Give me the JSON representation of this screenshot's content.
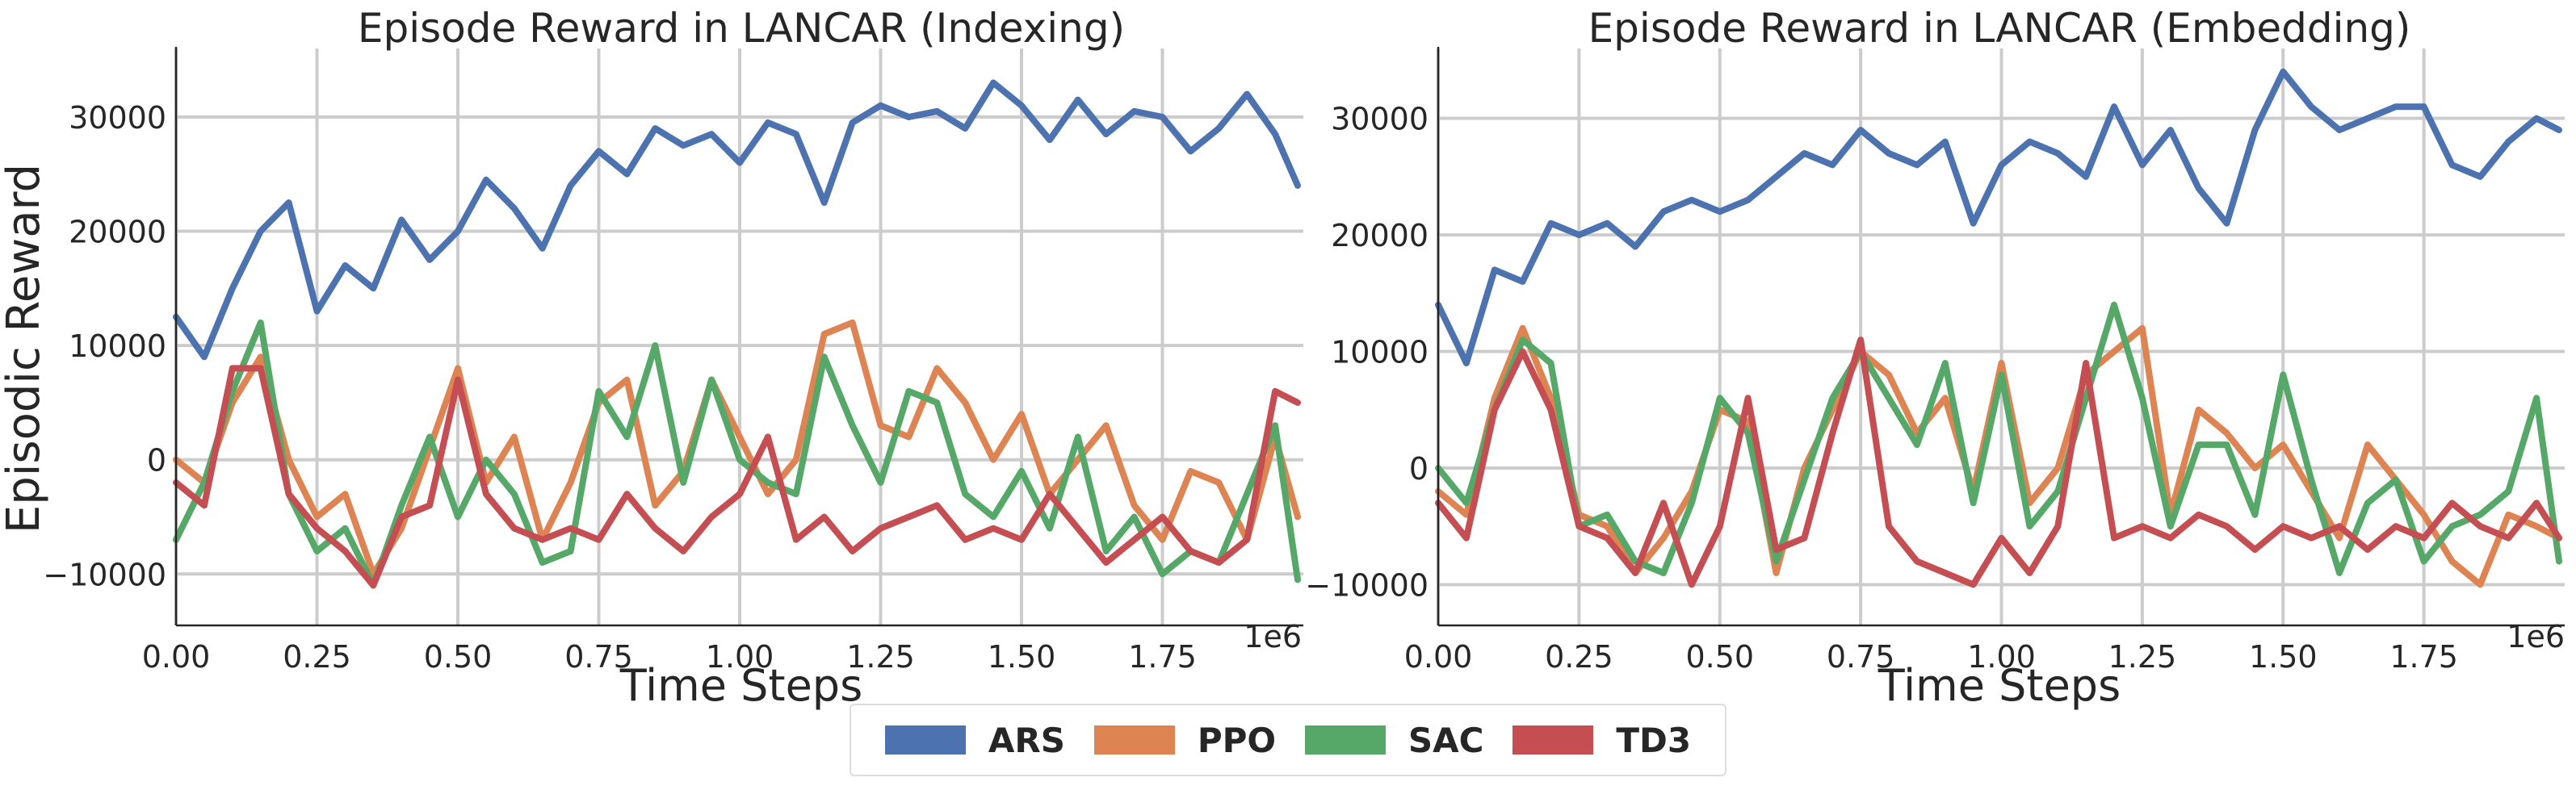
{
  "y_axis_label": "Episodic Reward",
  "colors": {
    "ARS": "#4c72b0",
    "PPO": "#dd8452",
    "SAC": "#55a868",
    "TD3": "#c44e52"
  },
  "legend": [
    {
      "name": "ARS",
      "color": "#4c72b0"
    },
    {
      "name": "PPO",
      "color": "#dd8452"
    },
    {
      "name": "SAC",
      "color": "#55a868"
    },
    {
      "name": "TD3",
      "color": "#c44e52"
    }
  ],
  "chart_data": [
    {
      "type": "line",
      "title": "Episode Reward in LANCAR (Indexing)",
      "xlabel": "Time Steps",
      "ylabel": "Episodic Reward",
      "x_offset_label": "1e6",
      "xlim": [
        0,
        2000000
      ],
      "ylim": [
        -14500,
        36000
      ],
      "xticks": [
        0,
        250000,
        500000,
        750000,
        1000000,
        1250000,
        1500000,
        1750000
      ],
      "xtick_labels": [
        "0.00",
        "0.25",
        "0.50",
        "0.75",
        "1.00",
        "1.25",
        "1.50",
        "1.75"
      ],
      "yticks": [
        -10000,
        0,
        10000,
        20000,
        30000
      ],
      "ytick_labels": [
        "−10000",
        "0",
        "10000",
        "20000",
        "30000"
      ],
      "grid": true,
      "series": [
        {
          "name": "ARS",
          "color": "#4c72b0",
          "x": [
            0,
            50000,
            100000,
            150000,
            200000,
            250000,
            300000,
            350000,
            400000,
            450000,
            500000,
            550000,
            600000,
            650000,
            700000,
            750000,
            800000,
            850000,
            900000,
            950000,
            1000000,
            1050000,
            1100000,
            1150000,
            1200000,
            1250000,
            1300000,
            1350000,
            1400000,
            1450000,
            1500000,
            1550000,
            1600000,
            1650000,
            1700000,
            1750000,
            1800000,
            1850000,
            1900000,
            1950000,
            1990000
          ],
          "y": [
            12500,
            9000,
            15000,
            20000,
            22500,
            13000,
            17000,
            15000,
            21000,
            17500,
            20000,
            24500,
            22000,
            18500,
            24000,
            27000,
            25000,
            29000,
            27500,
            28500,
            26000,
            29500,
            28500,
            22500,
            29500,
            31000,
            30000,
            30500,
            29000,
            33000,
            31000,
            28000,
            31500,
            28500,
            30500,
            30000,
            27000,
            29000,
            32000,
            28500,
            24000
          ]
        },
        {
          "name": "PPO",
          "color": "#dd8452",
          "x": [
            0,
            50000,
            100000,
            150000,
            200000,
            250000,
            300000,
            350000,
            400000,
            450000,
            500000,
            550000,
            600000,
            650000,
            700000,
            750000,
            800000,
            850000,
            900000,
            950000,
            1000000,
            1050000,
            1100000,
            1150000,
            1200000,
            1250000,
            1300000,
            1350000,
            1400000,
            1450000,
            1500000,
            1550000,
            1600000,
            1650000,
            1700000,
            1750000,
            1800000,
            1850000,
            1900000,
            1950000,
            1990000
          ],
          "y": [
            0,
            -2000,
            5000,
            9000,
            0,
            -5000,
            -3000,
            -10000,
            -6000,
            1000,
            8000,
            -2000,
            2000,
            -7000,
            -2000,
            5000,
            7000,
            -4000,
            -1000,
            7000,
            2000,
            -3000,
            0,
            11000,
            12000,
            3000,
            2000,
            8000,
            5000,
            0,
            4000,
            -3000,
            0,
            3000,
            -4000,
            -7000,
            -1000,
            -2000,
            -7000,
            2000,
            -5000
          ]
        },
        {
          "name": "SAC",
          "color": "#55a868",
          "x": [
            0,
            50000,
            100000,
            150000,
            200000,
            250000,
            300000,
            350000,
            400000,
            450000,
            500000,
            550000,
            600000,
            650000,
            700000,
            750000,
            800000,
            850000,
            900000,
            950000,
            1000000,
            1050000,
            1100000,
            1150000,
            1200000,
            1250000,
            1300000,
            1350000,
            1400000,
            1450000,
            1500000,
            1550000,
            1600000,
            1650000,
            1700000,
            1750000,
            1800000,
            1850000,
            1900000,
            1950000,
            1990000
          ],
          "y": [
            -7000,
            -2000,
            6000,
            12000,
            -3000,
            -8000,
            -6000,
            -11000,
            -4000,
            2000,
            -5000,
            0,
            -3000,
            -9000,
            -8000,
            6000,
            2000,
            10000,
            -2000,
            7000,
            0,
            -2000,
            -3000,
            9000,
            3000,
            -2000,
            6000,
            5000,
            -3000,
            -5000,
            -1000,
            -6000,
            2000,
            -8000,
            -5000,
            -10000,
            -8000,
            -9000,
            -3000,
            3000,
            -10500
          ]
        },
        {
          "name": "TD3",
          "color": "#c44e52",
          "x": [
            0,
            50000,
            100000,
            150000,
            200000,
            250000,
            300000,
            350000,
            400000,
            450000,
            500000,
            550000,
            600000,
            650000,
            700000,
            750000,
            800000,
            850000,
            900000,
            950000,
            1000000,
            1050000,
            1100000,
            1150000,
            1200000,
            1250000,
            1300000,
            1350000,
            1400000,
            1450000,
            1500000,
            1550000,
            1600000,
            1650000,
            1700000,
            1750000,
            1800000,
            1850000,
            1900000,
            1950000,
            1990000
          ],
          "y": [
            -2000,
            -4000,
            8000,
            8000,
            -3000,
            -6000,
            -8000,
            -11000,
            -5000,
            -4000,
            7000,
            -3000,
            -6000,
            -7000,
            -6000,
            -7000,
            -3000,
            -6000,
            -8000,
            -5000,
            -3000,
            2000,
            -7000,
            -5000,
            -8000,
            -6000,
            -5000,
            -4000,
            -7000,
            -6000,
            -7000,
            -3000,
            -6000,
            -9000,
            -7000,
            -5000,
            -8000,
            -9000,
            -7000,
            6000,
            5000
          ]
        }
      ]
    },
    {
      "type": "line",
      "title": "Episode Reward in LANCAR (Embedding)",
      "xlabel": "Time Steps",
      "ylabel": "",
      "x_offset_label": "1e6",
      "xlim": [
        0,
        2000000
      ],
      "ylim": [
        -13500,
        36000
      ],
      "xticks": [
        0,
        250000,
        500000,
        750000,
        1000000,
        1250000,
        1500000,
        1750000
      ],
      "xtick_labels": [
        "0.00",
        "0.25",
        "0.50",
        "0.75",
        "1.00",
        "1.25",
        "1.50",
        "1.75"
      ],
      "yticks": [
        -10000,
        0,
        10000,
        20000,
        30000
      ],
      "ytick_labels": [
        "−10000",
        "0",
        "10000",
        "20000",
        "30000"
      ],
      "grid": true,
      "series": [
        {
          "name": "ARS",
          "color": "#4c72b0",
          "x": [
            0,
            50000,
            100000,
            150000,
            200000,
            250000,
            300000,
            350000,
            400000,
            450000,
            500000,
            550000,
            600000,
            650000,
            700000,
            750000,
            800000,
            850000,
            900000,
            950000,
            1000000,
            1050000,
            1100000,
            1150000,
            1200000,
            1250000,
            1300000,
            1350000,
            1400000,
            1450000,
            1500000,
            1550000,
            1600000,
            1650000,
            1700000,
            1750000,
            1800000,
            1850000,
            1900000,
            1950000,
            1990000
          ],
          "y": [
            14000,
            9000,
            17000,
            16000,
            21000,
            20000,
            21000,
            19000,
            22000,
            23000,
            22000,
            23000,
            25000,
            27000,
            26000,
            29000,
            27000,
            26000,
            28000,
            21000,
            26000,
            28000,
            27000,
            25000,
            31000,
            26000,
            29000,
            24000,
            21000,
            29000,
            34000,
            31000,
            29000,
            30000,
            31000,
            31000,
            26000,
            25000,
            28000,
            30000,
            29000
          ]
        },
        {
          "name": "PPO",
          "color": "#dd8452",
          "x": [
            0,
            50000,
            100000,
            150000,
            200000,
            250000,
            300000,
            350000,
            400000,
            450000,
            500000,
            550000,
            600000,
            650000,
            700000,
            750000,
            800000,
            850000,
            900000,
            950000,
            1000000,
            1050000,
            1100000,
            1150000,
            1200000,
            1250000,
            1300000,
            1350000,
            1400000,
            1450000,
            1500000,
            1550000,
            1600000,
            1650000,
            1700000,
            1750000,
            1800000,
            1850000,
            1900000,
            1950000,
            1990000
          ],
          "y": [
            -2000,
            -4000,
            6000,
            12000,
            6000,
            -4000,
            -5000,
            -9000,
            -6000,
            -2000,
            5000,
            4000,
            -9000,
            0,
            5000,
            10000,
            8000,
            3000,
            6000,
            -2000,
            9000,
            -3000,
            0,
            8000,
            10000,
            12000,
            -4000,
            5000,
            3000,
            0,
            2000,
            -2000,
            -6000,
            2000,
            -1000,
            -4000,
            -8000,
            -10000,
            -4000,
            -5000,
            -6000
          ]
        },
        {
          "name": "SAC",
          "color": "#55a868",
          "x": [
            0,
            50000,
            100000,
            150000,
            200000,
            250000,
            300000,
            350000,
            400000,
            450000,
            500000,
            550000,
            600000,
            650000,
            700000,
            750000,
            800000,
            850000,
            900000,
            950000,
            1000000,
            1050000,
            1100000,
            1150000,
            1200000,
            1250000,
            1300000,
            1350000,
            1400000,
            1450000,
            1500000,
            1550000,
            1600000,
            1650000,
            1700000,
            1750000,
            1800000,
            1850000,
            1900000,
            1950000,
            1990000
          ],
          "y": [
            0,
            -3000,
            5000,
            11000,
            9000,
            -5000,
            -4000,
            -8000,
            -9000,
            -3000,
            6000,
            3000,
            -8000,
            -1000,
            6000,
            10000,
            6000,
            2000,
            9000,
            -3000,
            8000,
            -5000,
            -2000,
            6000,
            14000,
            6000,
            -5000,
            2000,
            2000,
            -4000,
            8000,
            -1000,
            -9000,
            -3000,
            -1000,
            -8000,
            -5000,
            -4000,
            -2000,
            6000,
            -8000
          ]
        },
        {
          "name": "TD3",
          "color": "#c44e52",
          "x": [
            0,
            50000,
            100000,
            150000,
            200000,
            250000,
            300000,
            350000,
            400000,
            450000,
            500000,
            550000,
            600000,
            650000,
            700000,
            750000,
            800000,
            850000,
            900000,
            950000,
            1000000,
            1050000,
            1100000,
            1150000,
            1200000,
            1250000,
            1300000,
            1350000,
            1400000,
            1450000,
            1500000,
            1550000,
            1600000,
            1650000,
            1700000,
            1750000,
            1800000,
            1850000,
            1900000,
            1950000,
            1990000
          ],
          "y": [
            -3000,
            -6000,
            5000,
            10000,
            5000,
            -5000,
            -6000,
            -9000,
            -3000,
            -10000,
            -5000,
            6000,
            -7000,
            -6000,
            3000,
            11000,
            -5000,
            -8000,
            -9000,
            -10000,
            -6000,
            -9000,
            -5000,
            9000,
            -6000,
            -5000,
            -6000,
            -4000,
            -5000,
            -7000,
            -5000,
            -6000,
            -5000,
            -7000,
            -5000,
            -6000,
            -3000,
            -5000,
            -6000,
            -3000,
            -6000
          ]
        }
      ]
    }
  ]
}
